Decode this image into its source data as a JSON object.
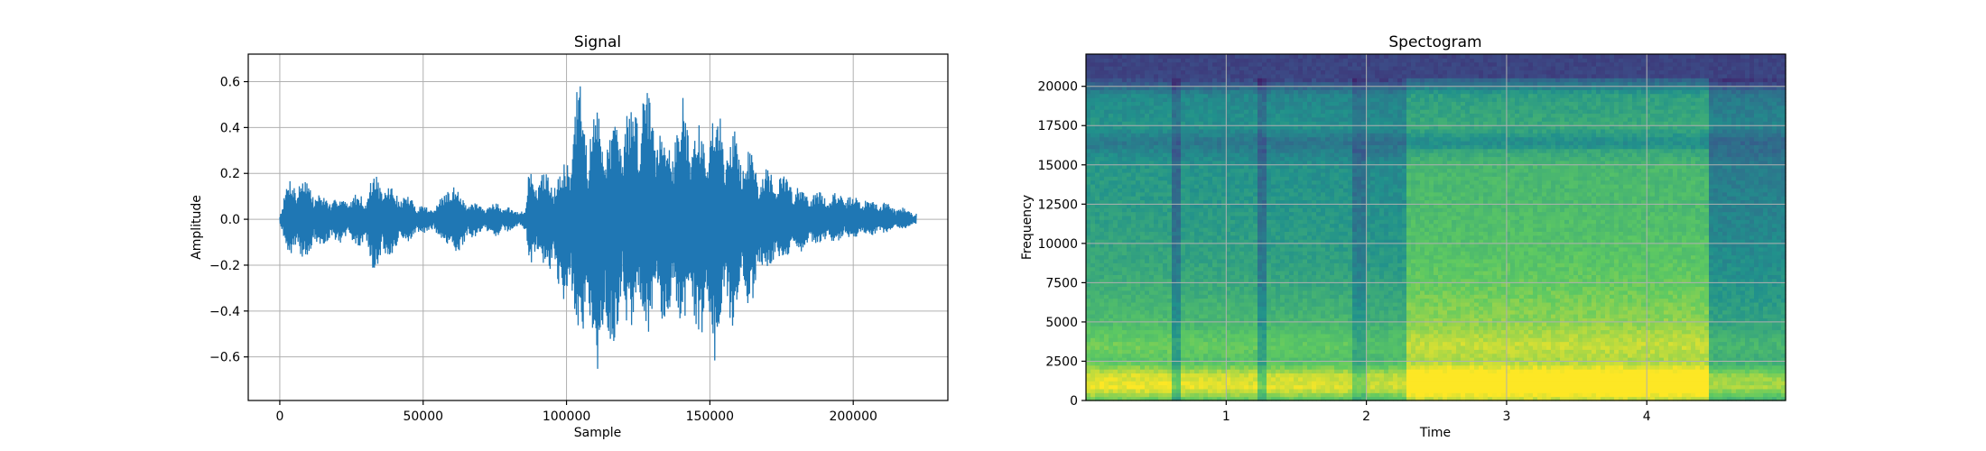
{
  "chart_data": [
    {
      "type": "line",
      "title": "Signal",
      "xlabel": "Sample",
      "ylabel": "Amplitude",
      "xlim": [
        -11000,
        233000
      ],
      "ylim": [
        -0.79,
        0.72
      ],
      "xticks": [
        0,
        50000,
        100000,
        150000,
        200000
      ],
      "xtick_labels": [
        "0",
        "50000",
        "100000",
        "150000",
        "200000"
      ],
      "yticks": [
        -0.6,
        -0.4,
        -0.2,
        0.0,
        0.2,
        0.4,
        0.6
      ],
      "ytick_labels": [
        "−0.6",
        "−0.4",
        "−0.2",
        "0.0",
        "0.2",
        "0.4",
        "0.6"
      ],
      "grid": true,
      "series_color": "#1f77b4",
      "envelope": {
        "x": [
          0,
          3000,
          8000,
          15000,
          22000,
          30000,
          33000,
          38000,
          45000,
          52000,
          57000,
          60000,
          64000,
          70000,
          76000,
          82000,
          86000,
          87000,
          92000,
          96000,
          100000,
          104000,
          108000,
          112000,
          116000,
          120000,
          124000,
          128000,
          132000,
          136000,
          140000,
          144000,
          148000,
          152000,
          156000,
          160000,
          164000,
          170000,
          176000,
          182000,
          188000,
          195000,
          202000,
          210000,
          216000,
          222000
        ],
        "upper": [
          0.03,
          0.18,
          0.2,
          0.1,
          0.1,
          0.12,
          0.21,
          0.15,
          0.1,
          0.05,
          0.1,
          0.19,
          0.1,
          0.06,
          0.08,
          0.04,
          0.05,
          0.25,
          0.2,
          0.22,
          0.25,
          0.62,
          0.45,
          0.5,
          0.4,
          0.48,
          0.55,
          0.65,
          0.5,
          0.38,
          0.55,
          0.45,
          0.38,
          0.53,
          0.42,
          0.38,
          0.3,
          0.22,
          0.2,
          0.15,
          0.12,
          0.12,
          0.1,
          0.08,
          0.06,
          0.03
        ],
        "lower": [
          -0.03,
          -0.15,
          -0.18,
          -0.12,
          -0.1,
          -0.13,
          -0.24,
          -0.18,
          -0.1,
          -0.05,
          -0.1,
          -0.2,
          -0.12,
          -0.06,
          -0.08,
          -0.04,
          -0.05,
          -0.22,
          -0.2,
          -0.3,
          -0.38,
          -0.53,
          -0.6,
          -0.72,
          -0.55,
          -0.48,
          -0.52,
          -0.5,
          -0.45,
          -0.55,
          -0.43,
          -0.48,
          -0.55,
          -0.63,
          -0.45,
          -0.5,
          -0.38,
          -0.25,
          -0.18,
          -0.15,
          -0.12,
          -0.1,
          -0.09,
          -0.07,
          -0.05,
          -0.03
        ]
      }
    },
    {
      "type": "heatmap",
      "title": "Spectogram",
      "xlabel": "Time",
      "ylabel": "Frequency",
      "xlim": [
        0.0,
        4.99
      ],
      "ylim": [
        0,
        22050
      ],
      "xticks": [
        1,
        2,
        3,
        4
      ],
      "xtick_labels": [
        "1",
        "2",
        "3",
        "4"
      ],
      "yticks": [
        0,
        2500,
        5000,
        7500,
        10000,
        12500,
        15000,
        17500,
        20000
      ],
      "ytick_labels": [
        "0",
        "2500",
        "5000",
        "7500",
        "10000",
        "12500",
        "15000",
        "17500",
        "20000"
      ],
      "grid": true,
      "colormap": "viridis",
      "time_segments": [
        {
          "start": 0.0,
          "end": 0.62,
          "level": 0.75
        },
        {
          "start": 0.62,
          "end": 0.68,
          "level": 0.4
        },
        {
          "start": 0.68,
          "end": 1.22,
          "level": 0.72
        },
        {
          "start": 1.22,
          "end": 1.28,
          "level": 0.4
        },
        {
          "start": 1.28,
          "end": 1.9,
          "level": 0.7
        },
        {
          "start": 1.9,
          "end": 1.98,
          "level": 0.45
        },
        {
          "start": 1.98,
          "end": 2.28,
          "level": 0.65
        },
        {
          "start": 2.28,
          "end": 4.45,
          "level": 1.0
        },
        {
          "start": 4.45,
          "end": 4.99,
          "level": 0.55
        }
      ],
      "freq_profile": {
        "freqs": [
          0,
          800,
          1600,
          2500,
          3500,
          5000,
          6500,
          8000,
          10000,
          12500,
          15000,
          16500,
          17500,
          19500,
          20500,
          22050
        ],
        "intensity": [
          0.72,
          0.95,
          0.92,
          0.7,
          0.75,
          0.66,
          0.62,
          0.58,
          0.55,
          0.52,
          0.5,
          0.38,
          0.5,
          0.45,
          0.2,
          0.18
        ]
      }
    }
  ]
}
